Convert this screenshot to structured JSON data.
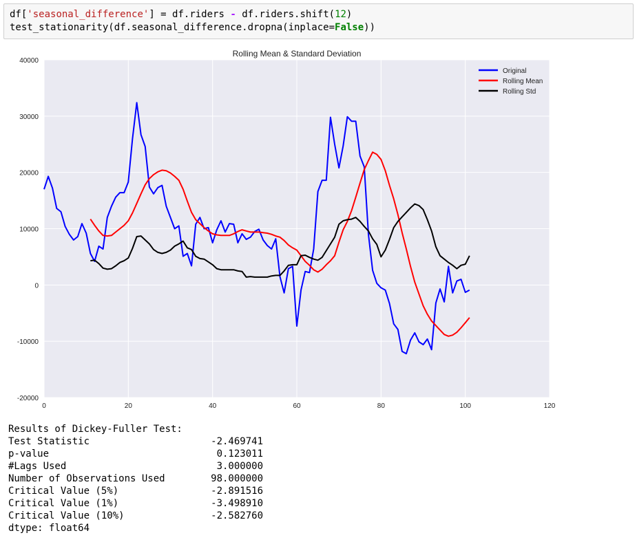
{
  "code": {
    "line1": {
      "df_open": "df[",
      "key": "'seasonal_difference'",
      "after_key": "] = df.riders ",
      "minus": "-",
      "shift_call": " df.riders.shift(",
      "shift_n": "12",
      "close": ")"
    },
    "line2": {
      "prefix": "test_stationarity(df.seasonal_difference.dropna(inplace=",
      "false_kw": "False",
      "suffix": "))"
    }
  },
  "chart_data": {
    "type": "line",
    "title": "Rolling Mean & Standard Deviation",
    "xlabel": "",
    "ylabel": "",
    "xlim": [
      0,
      120
    ],
    "ylim": [
      -20000,
      40000
    ],
    "xticks": [
      0,
      20,
      40,
      60,
      80,
      100,
      120
    ],
    "yticks": [
      -20000,
      -10000,
      0,
      10000,
      20000,
      30000,
      40000
    ],
    "grid": true,
    "legend_position": "top-right",
    "series": [
      {
        "name": "Original",
        "color": "#0000ff",
        "x": [
          0,
          1,
          2,
          3,
          4,
          5,
          6,
          7,
          8,
          9,
          10,
          11,
          12,
          13,
          14,
          15,
          16,
          17,
          18,
          19,
          20,
          21,
          22,
          23,
          24,
          25,
          26,
          27,
          28,
          29,
          30,
          31,
          32,
          33,
          34,
          35,
          36,
          37,
          38,
          39,
          40,
          41,
          42,
          43,
          44,
          45,
          46,
          47,
          48,
          49,
          50,
          51,
          52,
          53,
          54,
          55,
          56,
          57,
          58,
          59,
          60,
          61,
          62,
          63,
          64,
          65,
          66,
          67,
          68,
          69,
          70,
          71,
          72,
          73,
          74,
          75,
          76,
          77,
          78,
          79,
          80,
          81,
          82,
          83,
          84,
          85,
          86,
          87,
          88,
          89,
          90,
          91,
          92,
          93,
          94,
          95,
          96,
          97,
          98,
          99,
          100,
          101
        ],
        "y": [
          17000,
          19300,
          17200,
          13600,
          13000,
          10400,
          9000,
          8000,
          8600,
          10900,
          9200,
          5600,
          4200,
          6900,
          6400,
          12000,
          14000,
          15600,
          16400,
          16400,
          18300,
          26000,
          32400,
          26700,
          24600,
          17400,
          16200,
          17300,
          17700,
          14000,
          12000,
          10000,
          10500,
          5100,
          5600,
          3400,
          10800,
          12000,
          10000,
          10200,
          7500,
          9800,
          11400,
          9400,
          10900,
          10800,
          7500,
          9100,
          8100,
          8500,
          9500,
          9900,
          8000,
          7000,
          6400,
          8200,
          1500,
          -1400,
          2900,
          3300,
          -7300,
          -900,
          2400,
          2200,
          6400,
          16600,
          18600,
          18600,
          29800,
          25000,
          20800,
          24700,
          29900,
          29100,
          29100,
          22900,
          21000,
          9000,
          2600,
          300,
          -500,
          -900,
          -3300,
          -6900,
          -7900,
          -11800,
          -12200,
          -9800,
          -8500,
          -10100,
          -10600,
          -9600,
          -11500,
          -3200,
          -700,
          -3000,
          3300,
          -1400,
          700,
          1000,
          -1300,
          -900
        ]
      },
      {
        "name": "Rolling Mean",
        "color": "#ff0000",
        "x": [
          11,
          12,
          13,
          14,
          15,
          16,
          17,
          18,
          19,
          20,
          21,
          22,
          23,
          24,
          25,
          26,
          27,
          28,
          29,
          30,
          31,
          32,
          33,
          34,
          35,
          36,
          37,
          38,
          39,
          40,
          41,
          42,
          43,
          44,
          45,
          46,
          47,
          48,
          49,
          50,
          51,
          52,
          53,
          54,
          55,
          56,
          57,
          58,
          59,
          60,
          61,
          62,
          63,
          64,
          65,
          66,
          67,
          68,
          69,
          70,
          71,
          72,
          73,
          74,
          75,
          76,
          77,
          78,
          79,
          80,
          81,
          82,
          83,
          84,
          85,
          86,
          87,
          88,
          89,
          90,
          91,
          92,
          93,
          94,
          95,
          96,
          97,
          98,
          99,
          100,
          101
        ],
        "y": [
          11700,
          10600,
          9600,
          8800,
          8700,
          8800,
          9400,
          10000,
          10600,
          11400,
          12800,
          14500,
          16200,
          17800,
          18900,
          19600,
          20100,
          20400,
          20300,
          19900,
          19300,
          18600,
          17000,
          14900,
          12900,
          11600,
          10900,
          10200,
          9600,
          9100,
          8900,
          8800,
          8800,
          8800,
          9100,
          9500,
          9800,
          9600,
          9400,
          9400,
          9400,
          9300,
          9200,
          9000,
          8700,
          8500,
          7900,
          7100,
          6600,
          6200,
          5200,
          4200,
          3500,
          2700,
          2300,
          2800,
          3600,
          4300,
          5200,
          7600,
          9800,
          11300,
          13200,
          15600,
          18100,
          20500,
          22100,
          23600,
          23200,
          22300,
          20300,
          17700,
          15300,
          12500,
          9300,
          6400,
          3300,
          500,
          -1600,
          -3700,
          -5200,
          -6400,
          -7200,
          -8000,
          -8800,
          -9100,
          -8900,
          -8400,
          -7600,
          -6700,
          -5800
        ]
      },
      {
        "name": "Rolling Std",
        "color": "#000000",
        "x": [
          11,
          12,
          13,
          14,
          15,
          16,
          17,
          18,
          19,
          20,
          21,
          22,
          23,
          24,
          25,
          26,
          27,
          28,
          29,
          30,
          31,
          32,
          33,
          34,
          35,
          36,
          37,
          38,
          39,
          40,
          41,
          42,
          43,
          44,
          45,
          46,
          47,
          48,
          49,
          50,
          51,
          52,
          53,
          54,
          55,
          56,
          57,
          58,
          59,
          60,
          61,
          62,
          63,
          64,
          65,
          66,
          67,
          68,
          69,
          70,
          71,
          72,
          73,
          74,
          75,
          76,
          77,
          78,
          79,
          80,
          81,
          82,
          83,
          84,
          85,
          86,
          87,
          88,
          89,
          90,
          91,
          92,
          93,
          94,
          95,
          96,
          97,
          98,
          99,
          100,
          101
        ],
        "y": [
          4300,
          4400,
          3800,
          3000,
          2800,
          2900,
          3400,
          4000,
          4300,
          4800,
          6500,
          8600,
          8700,
          8000,
          7300,
          6300,
          5800,
          5600,
          5800,
          6200,
          6900,
          7300,
          7800,
          6600,
          6300,
          5100,
          4700,
          4600,
          4100,
          3600,
          2900,
          2700,
          2700,
          2700,
          2700,
          2500,
          2400,
          1400,
          1500,
          1400,
          1400,
          1400,
          1400,
          1600,
          1700,
          1700,
          2500,
          3500,
          3600,
          3600,
          5200,
          5300,
          4900,
          4600,
          4400,
          4900,
          6100,
          7300,
          8500,
          10800,
          11400,
          11600,
          11700,
          12000,
          11300,
          10400,
          9600,
          8200,
          7200,
          5000,
          6200,
          8100,
          10200,
          11300,
          12100,
          12900,
          13700,
          14400,
          14100,
          13400,
          11600,
          9600,
          6800,
          5200,
          4600,
          4000,
          3500,
          2900,
          3500,
          3700,
          5200
        ]
      }
    ]
  },
  "output": {
    "header": "Results of Dickey-Fuller Test:",
    "rows": [
      {
        "label": "Test Statistic",
        "value": "-2.469741"
      },
      {
        "label": "p-value",
        "value": "0.123011"
      },
      {
        "label": "#Lags Used",
        "value": "3.000000"
      },
      {
        "label": "Number of Observations Used",
        "value": "98.000000"
      },
      {
        "label": "Critical Value (5%)",
        "value": "-2.891516"
      },
      {
        "label": "Critical Value (1%)",
        "value": "-3.498910"
      },
      {
        "label": "Critical Value (10%)",
        "value": "-2.582760"
      }
    ],
    "dtype": "dtype: float64"
  }
}
